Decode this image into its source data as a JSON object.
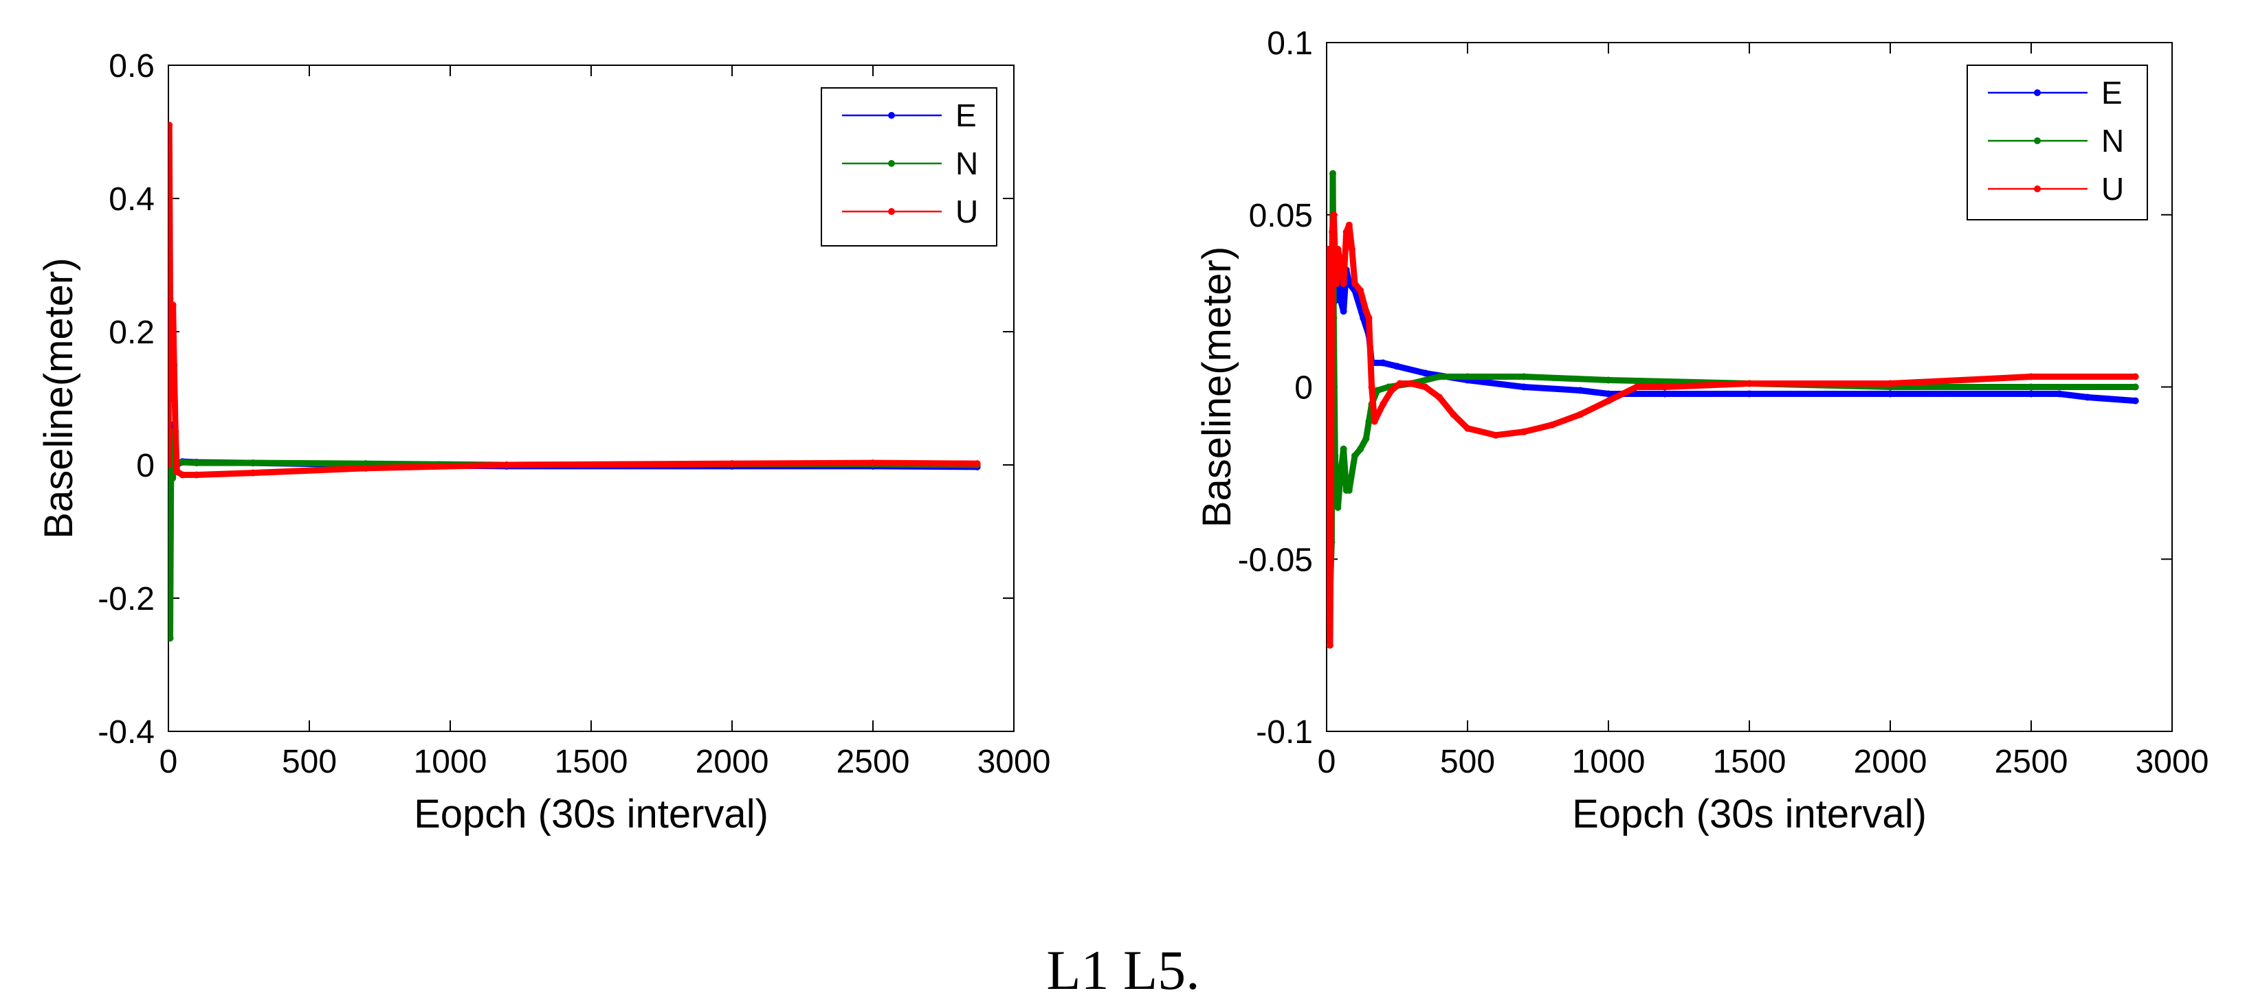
{
  "caption": "L1 L5.",
  "chart_data": [
    {
      "type": "line",
      "xlabel": "Eopch (30s interval)",
      "ylabel": "Baseline(meter)",
      "xlim": [
        0,
        3000
      ],
      "ylim": [
        -0.4,
        0.6
      ],
      "xticks": [
        0,
        500,
        1000,
        1500,
        2000,
        2500,
        3000
      ],
      "xtick_labels": [
        "0",
        "500",
        "1000",
        "1500",
        "2000",
        "2500",
        "3000"
      ],
      "yticks": [
        -0.4,
        -0.2,
        0,
        0.2,
        0.4,
        0.6
      ],
      "ytick_labels": [
        "-0.4",
        "-0.2",
        "0",
        "0.2",
        "0.4",
        "0.6"
      ],
      "legend_position": "top-right",
      "series": [
        {
          "name": "E",
          "color": "#0000ff",
          "x": [
            0,
            3,
            6,
            10,
            15,
            22,
            30,
            50,
            100,
            300,
            700,
            1200,
            2000,
            2500,
            2870
          ],
          "y": [
            0.0,
            -0.04,
            -0.2,
            0.06,
            -0.01,
            0.01,
            0.0,
            0.005,
            0.004,
            0.003,
            0.0,
            -0.002,
            -0.002,
            -0.002,
            -0.003
          ]
        },
        {
          "name": "N",
          "color": "#008000",
          "x": [
            0,
            3,
            6,
            10,
            15,
            22,
            30,
            50,
            100,
            300,
            700,
            1200,
            2000,
            2500,
            2870
          ],
          "y": [
            0.0,
            -0.07,
            -0.26,
            0.05,
            -0.02,
            0.0,
            0.003,
            0.004,
            0.003,
            0.003,
            0.002,
            0.0,
            0.001,
            0.001,
            0.0
          ]
        },
        {
          "name": "U",
          "color": "#ff0000",
          "x": [
            0,
            3,
            6,
            9,
            12,
            16,
            20,
            25,
            30,
            50,
            100,
            300,
            700,
            1200,
            2000,
            2500,
            2870
          ],
          "y": [
            0.0,
            0.51,
            0.25,
            0.1,
            0.2,
            0.24,
            0.15,
            0.05,
            -0.01,
            -0.015,
            -0.015,
            -0.012,
            -0.005,
            0.0,
            0.002,
            0.003,
            0.002
          ]
        }
      ]
    },
    {
      "type": "line",
      "xlabel": "Eopch (30s interval)",
      "ylabel": "Baseline(meter)",
      "xlim": [
        0,
        3000
      ],
      "ylim": [
        -0.1,
        0.1
      ],
      "xticks": [
        0,
        500,
        1000,
        1500,
        2000,
        2500,
        3000
      ],
      "xtick_labels": [
        "0",
        "500",
        "1000",
        "1500",
        "2000",
        "2500",
        "3000"
      ],
      "yticks": [
        -0.1,
        -0.05,
        0,
        0.05,
        0.1
      ],
      "ytick_labels": [
        "-0.1",
        "-0.05",
        "0",
        "0.05",
        "0.1"
      ],
      "legend_position": "top-right",
      "series": [
        {
          "name": "E",
          "color": "#0000ff",
          "x": [
            0,
            5,
            10,
            20,
            30,
            40,
            50,
            60,
            70,
            80,
            100,
            130,
            150,
            160,
            200,
            250,
            350,
            500,
            700,
            900,
            1000,
            1200,
            1500,
            2000,
            2500,
            2600,
            2700,
            2870
          ],
          "y": [
            0.0,
            -0.03,
            0.01,
            0.035,
            0.025,
            0.038,
            0.025,
            0.022,
            0.034,
            0.03,
            0.028,
            0.02,
            0.015,
            0.007,
            0.007,
            0.006,
            0.004,
            0.002,
            0.0,
            -0.001,
            -0.002,
            -0.002,
            -0.002,
            -0.002,
            -0.002,
            -0.002,
            -0.003,
            -0.004
          ]
        },
        {
          "name": "N",
          "color": "#008000",
          "x": [
            0,
            5,
            8,
            12,
            18,
            22,
            25,
            30,
            35,
            40,
            50,
            60,
            70,
            80,
            100,
            120,
            140,
            150,
            160,
            180,
            220,
            300,
            400,
            500,
            700,
            1000,
            1500,
            2000,
            2500,
            2870
          ],
          "y": [
            -0.03,
            -0.055,
            -0.04,
            -0.06,
            -0.045,
            0.062,
            0.02,
            -0.02,
            -0.03,
            -0.035,
            -0.025,
            -0.018,
            -0.03,
            -0.03,
            -0.02,
            -0.018,
            -0.015,
            -0.01,
            -0.005,
            -0.001,
            0.0,
            0.001,
            0.003,
            0.003,
            0.003,
            0.002,
            0.001,
            0.0,
            0.0,
            0.0
          ]
        },
        {
          "name": "U",
          "color": "#ff0000",
          "x": [
            0,
            5,
            8,
            12,
            15,
            20,
            25,
            30,
            35,
            40,
            50,
            60,
            70,
            80,
            90,
            100,
            120,
            140,
            150,
            160,
            170,
            200,
            230,
            260,
            300,
            350,
            400,
            450,
            500,
            600,
            700,
            800,
            900,
            1000,
            1100,
            1200,
            1500,
            2000,
            2500,
            2870
          ],
          "y": [
            0.035,
            0.04,
            -0.03,
            -0.075,
            -0.04,
            0.045,
            0.05,
            0.038,
            0.03,
            0.04,
            0.035,
            0.03,
            0.045,
            0.047,
            0.04,
            0.03,
            0.028,
            0.022,
            0.02,
            0.0,
            -0.01,
            -0.005,
            -0.001,
            0.001,
            0.001,
            0.0,
            -0.003,
            -0.008,
            -0.012,
            -0.014,
            -0.013,
            -0.011,
            -0.008,
            -0.004,
            0.0,
            0.0,
            0.001,
            0.001,
            0.003,
            0.003
          ]
        }
      ]
    }
  ]
}
